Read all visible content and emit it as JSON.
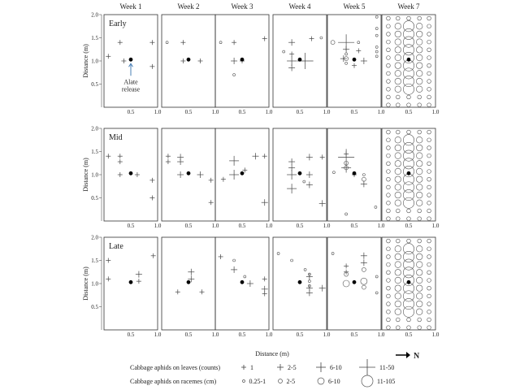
{
  "chart_data": {
    "type": "scatter",
    "columns": [
      "Week 1",
      "Week 2",
      "Week 3",
      "Week 4",
      "Week 5",
      "Week 7"
    ],
    "rows": [
      "Early",
      "Mid",
      "Late"
    ],
    "xlabel": "Distance (m)",
    "ylabel": "Distance (m)",
    "xlim": [
      0,
      1
    ],
    "ylim": [
      0,
      2
    ],
    "x_ticks": [
      "0.5",
      "1.0"
    ],
    "y_ticks": [
      "0.5",
      "1.0",
      "1.5",
      "2.0"
    ],
    "x_ticks_last_axis": [
      "0.5",
      "1.0"
    ],
    "alate_release": {
      "x": 0.5,
      "y": 1.03,
      "annotation": "Alate\nrelease"
    },
    "north_label": "N",
    "legend": {
      "leaves_title": "Cabbage aphids on leaves (counts)",
      "leaves_classes": [
        "1",
        "2-5",
        "6-10",
        "11-50"
      ],
      "racemes_title": "Cabbage aphids on racemes (cm)",
      "racemes_classes": [
        "0.25-1",
        "2-5",
        "6-10",
        "11-105"
      ]
    },
    "leaf_counts": {
      "Early": {
        "Week 1": [
          [
            0.08,
            1.1,
            0
          ],
          [
            0.3,
            1.4,
            0
          ],
          [
            0.9,
            1.4,
            0
          ],
          [
            0.9,
            0.88,
            0
          ],
          [
            0.37,
            1.0,
            0
          ]
        ],
        "Week 2": [
          [
            0.4,
            1.4,
            0
          ],
          [
            0.4,
            1.0,
            0
          ],
          [
            0.72,
            1.0,
            0
          ]
        ],
        "Week 3": [
          [
            0.35,
            1.4,
            0
          ],
          [
            0.35,
            1.0,
            1
          ],
          [
            0.5,
            1.0,
            0
          ],
          [
            0.92,
            1.48,
            0
          ]
        ],
        "Week 4": [
          [
            0.35,
            1.4,
            1
          ],
          [
            0.35,
            1.0,
            2
          ],
          [
            0.6,
            1.0,
            3
          ],
          [
            0.35,
            1.15,
            0
          ],
          [
            0.35,
            0.85,
            1
          ],
          [
            0.72,
            1.48,
            0
          ]
        ],
        "Week 5": [
          [
            0.35,
            1.4,
            3
          ],
          [
            0.35,
            1.25,
            1
          ],
          [
            0.3,
            1.05,
            1
          ],
          [
            0.5,
            0.9,
            0
          ],
          [
            0.68,
            1.0,
            1
          ],
          [
            0.58,
            1.22,
            0
          ]
        ],
        "Week 7": []
      },
      "Mid": {
        "Week 1": [
          [
            0.08,
            1.4,
            0
          ],
          [
            0.3,
            1.4,
            0
          ],
          [
            0.3,
            1.28,
            0
          ],
          [
            0.3,
            1.0,
            0
          ],
          [
            0.62,
            1.0,
            0
          ],
          [
            0.9,
            0.88,
            0
          ],
          [
            0.9,
            0.5,
            0
          ]
        ],
        "Week 2": [
          [
            0.12,
            1.4,
            0
          ],
          [
            0.35,
            1.38,
            1
          ],
          [
            0.35,
            1.28,
            1
          ],
          [
            0.12,
            1.28,
            0
          ],
          [
            0.35,
            1.0,
            1
          ],
          [
            0.72,
            1.0,
            1
          ],
          [
            0.92,
            0.88,
            0
          ],
          [
            0.92,
            0.4,
            0
          ]
        ],
        "Week 3": [
          [
            0.15,
            0.9,
            0
          ],
          [
            0.35,
            1.3,
            2
          ],
          [
            0.35,
            1.0,
            2
          ],
          [
            0.55,
            1.1,
            0
          ],
          [
            0.75,
            1.4,
            1
          ],
          [
            0.92,
            0.4,
            1
          ],
          [
            0.92,
            1.4,
            0
          ]
        ],
        "Week 4": [
          [
            0.35,
            1.28,
            1
          ],
          [
            0.35,
            1.15,
            1
          ],
          [
            0.35,
            1.0,
            2
          ],
          [
            0.35,
            0.7,
            2
          ],
          [
            0.68,
            1.0,
            1
          ],
          [
            0.68,
            0.78,
            1
          ],
          [
            0.68,
            1.38,
            1
          ],
          [
            0.92,
            0.38,
            1
          ],
          [
            0.92,
            1.38,
            0
          ]
        ],
        "Week 5": [
          [
            0.35,
            1.38,
            3
          ],
          [
            0.35,
            1.15,
            2
          ],
          [
            0.68,
            0.8,
            1
          ],
          [
            0.5,
            1.0,
            0
          ],
          [
            0.35,
            1.45,
            0
          ]
        ],
        "Week 7": []
      },
      "Late": {
        "Week 1": [
          [
            0.08,
            1.5,
            0
          ],
          [
            0.08,
            1.1,
            0
          ],
          [
            0.65,
            1.2,
            1
          ],
          [
            0.65,
            1.05,
            0
          ],
          [
            0.92,
            1.6,
            0
          ]
        ],
        "Week 2": [
          [
            0.3,
            0.82,
            0
          ],
          [
            0.55,
            1.25,
            1
          ],
          [
            0.55,
            1.1,
            1
          ],
          [
            0.75,
            0.82,
            0
          ]
        ],
        "Week 3": [
          [
            0.1,
            1.58,
            0
          ],
          [
            0.35,
            1.3,
            1
          ],
          [
            0.65,
            1.0,
            1
          ],
          [
            0.92,
            1.1,
            0
          ],
          [
            0.92,
            0.88,
            1
          ],
          [
            0.92,
            0.78,
            0
          ]
        ],
        "Week 4": [
          [
            0.68,
            1.15,
            1
          ],
          [
            0.68,
            0.9,
            1
          ],
          [
            0.68,
            0.8,
            1
          ],
          [
            0.92,
            0.9,
            1
          ]
        ],
        "Week 5": [
          [
            0.35,
            1.25,
            0
          ],
          [
            0.68,
            1.6,
            1
          ],
          [
            0.68,
            1.45,
            1
          ],
          [
            0.35,
            1.38,
            0
          ]
        ],
        "Week 7": []
      }
    },
    "raceme_cm": {
      "Early": {
        "Week 1": [],
        "Week 2": [
          [
            0.1,
            1.4,
            0
          ]
        ],
        "Week 3": [
          [
            0.1,
            1.4,
            0
          ],
          [
            0.35,
            0.7,
            0
          ]
        ],
        "Week 4": [
          [
            0.2,
            1.2,
            0
          ],
          [
            0.9,
            1.5,
            0
          ]
        ],
        "Week 5": [
          [
            0.1,
            1.4,
            1
          ],
          [
            0.35,
            1.15,
            0
          ],
          [
            0.35,
            1.05,
            1
          ],
          [
            0.35,
            0.95,
            0
          ],
          [
            0.58,
            1.4,
            0
          ],
          [
            0.92,
            1.7,
            0
          ],
          [
            0.92,
            1.55,
            0
          ],
          [
            0.92,
            1.3,
            0
          ],
          [
            0.92,
            1.2,
            0
          ],
          [
            0.92,
            1.1,
            0
          ],
          [
            0.92,
            1.95,
            0
          ]
        ],
        "Week 7": "dense"
      },
      "Mid": {
        "Week 1": [],
        "Week 2": [],
        "Week 3": [],
        "Week 4": [
          [
            0.58,
            0.85,
            0
          ]
        ],
        "Week 5": [
          [
            0.12,
            1.05,
            0
          ],
          [
            0.35,
            1.25,
            1
          ],
          [
            0.35,
            1.15,
            1
          ],
          [
            0.68,
            0.9,
            1
          ],
          [
            0.68,
            1.0,
            0
          ],
          [
            0.35,
            0.15,
            0
          ],
          [
            0.9,
            0.3,
            0
          ]
        ],
        "Week 7": "dense"
      },
      "Late": {
        "Week 1": [],
        "Week 2": [],
        "Week 3": [
          [
            0.35,
            1.5,
            0
          ],
          [
            0.55,
            1.15,
            0
          ]
        ],
        "Week 4": [
          [
            0.1,
            1.65,
            0
          ],
          [
            0.35,
            1.5,
            0
          ],
          [
            0.6,
            1.3,
            0
          ],
          [
            0.68,
            1.05,
            0
          ],
          [
            0.68,
            0.95,
            0
          ],
          [
            0.68,
            1.2,
            0
          ]
        ],
        "Week 5": [
          [
            0.1,
            1.65,
            0
          ],
          [
            0.35,
            1.2,
            1
          ],
          [
            0.35,
            1.0,
            2
          ],
          [
            0.68,
            1.05,
            2
          ],
          [
            0.68,
            1.3,
            1
          ],
          [
            0.68,
            0.92,
            1
          ],
          [
            0.92,
            1.15,
            0
          ],
          [
            0.92,
            0.8,
            0
          ]
        ],
        "Week 7": "dense"
      }
    }
  }
}
